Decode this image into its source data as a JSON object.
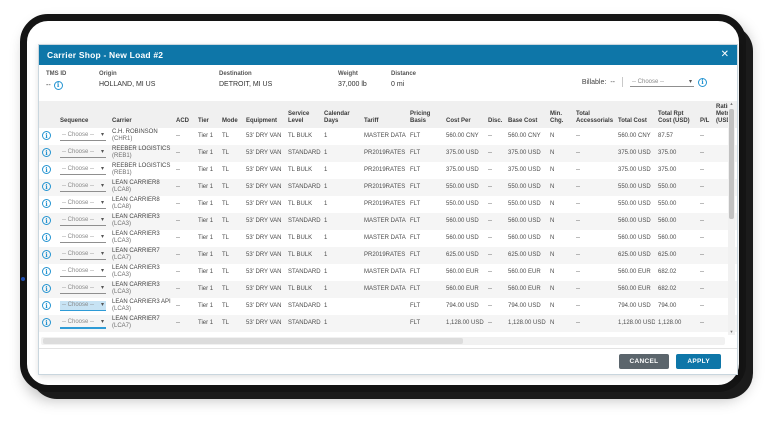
{
  "colors": {
    "accent": "#0e76a8",
    "info": "#2494d1",
    "hl": "#c7e3f4"
  },
  "window": {
    "title": "Carrier Shop - New Load #2",
    "close_icon": "✕"
  },
  "summary": {
    "fields": [
      {
        "label": "TMS ID",
        "value": "--",
        "info": true
      },
      {
        "label": "Origin",
        "value": "HOLLAND, MI US",
        "info": false
      },
      {
        "label": "Destination",
        "value": "DETROIT, MI US",
        "info": false
      },
      {
        "label": "Weight",
        "value": "37,000 lb",
        "info": false
      },
      {
        "label": "Distance",
        "value": "0 mi",
        "info": false
      }
    ],
    "billable": {
      "label": "Billable:",
      "value": "--",
      "placeholder": "-- Choose --"
    }
  },
  "table": {
    "columns": [
      "",
      "Sequence",
      "Carrier",
      "ACD",
      "Tier",
      "Mode",
      "Equipment",
      "Service Level",
      "Calendar Days",
      "Tariff",
      "Pricing Basis",
      "Cost Per",
      "Disc.",
      "Base Cost",
      "Min. Chg.",
      "Total Accessorials",
      "Total Cost",
      "Total Rpt Cost (USD)",
      "P/L",
      "Rating Metric (USD)"
    ],
    "sequence_placeholder": "-- Choose --",
    "rows": [
      {
        "carrier": "C.H. ROBINSON",
        "code": "(CHR1)",
        "acd": "--",
        "tier": "Tier 1",
        "mode": "TL",
        "equipment": "53' DRY VAN",
        "service_level": "TL BULK",
        "calendar_days": "1",
        "tariff": "MASTER DATA",
        "pricing_basis": "FLT",
        "cost_per": "560.00 CNY",
        "disc": "--",
        "base_cost": "560.00 CNY",
        "min_chg": "N",
        "total_accessorials": "--",
        "total_cost": "560.00 CNY",
        "total_rpt_cost": "87.57",
        "pl": "--",
        "rating_metric": "",
        "highlight": ""
      },
      {
        "carrier": "REEBER LOGISTICS",
        "code": "(REB1)",
        "acd": "--",
        "tier": "Tier 1",
        "mode": "TL",
        "equipment": "53' DRY VAN",
        "service_level": "STANDARD",
        "calendar_days": "1",
        "tariff": "PR2019RATES",
        "pricing_basis": "FLT",
        "cost_per": "375.00 USD",
        "disc": "--",
        "base_cost": "375.00 USD",
        "min_chg": "N",
        "total_accessorials": "--",
        "total_cost": "375.00 USD",
        "total_rpt_cost": "375.00",
        "pl": "--",
        "rating_metric": "",
        "highlight": ""
      },
      {
        "carrier": "REEBER LOGISTICS",
        "code": "(REB1)",
        "acd": "--",
        "tier": "Tier 1",
        "mode": "TL",
        "equipment": "53' DRY VAN",
        "service_level": "TL BULK",
        "calendar_days": "1",
        "tariff": "PR2019RATES",
        "pricing_basis": "FLT",
        "cost_per": "375.00 USD",
        "disc": "--",
        "base_cost": "375.00 USD",
        "min_chg": "N",
        "total_accessorials": "--",
        "total_cost": "375.00 USD",
        "total_rpt_cost": "375.00",
        "pl": "--",
        "rating_metric": "",
        "highlight": ""
      },
      {
        "carrier": "LEAN CARRIER8",
        "code": "(LCA8)",
        "acd": "--",
        "tier": "Tier 1",
        "mode": "TL",
        "equipment": "53' DRY VAN",
        "service_level": "STANDARD",
        "calendar_days": "1",
        "tariff": "PR2019RATES",
        "pricing_basis": "FLT",
        "cost_per": "550.00 USD",
        "disc": "--",
        "base_cost": "550.00 USD",
        "min_chg": "N",
        "total_accessorials": "--",
        "total_cost": "550.00 USD",
        "total_rpt_cost": "550.00",
        "pl": "--",
        "rating_metric": "",
        "highlight": ""
      },
      {
        "carrier": "LEAN CARRIER8",
        "code": "(LCA8)",
        "acd": "--",
        "tier": "Tier 1",
        "mode": "TL",
        "equipment": "53' DRY VAN",
        "service_level": "TL BULK",
        "calendar_days": "1",
        "tariff": "PR2019RATES",
        "pricing_basis": "FLT",
        "cost_per": "550.00 USD",
        "disc": "--",
        "base_cost": "550.00 USD",
        "min_chg": "N",
        "total_accessorials": "--",
        "total_cost": "550.00 USD",
        "total_rpt_cost": "550.00",
        "pl": "--",
        "rating_metric": "",
        "highlight": ""
      },
      {
        "carrier": "LEAN CARRIER3",
        "code": "(LCA3)",
        "acd": "--",
        "tier": "Tier 1",
        "mode": "TL",
        "equipment": "53' DRY VAN",
        "service_level": "STANDARD",
        "calendar_days": "1",
        "tariff": "MASTER DATA",
        "pricing_basis": "FLT",
        "cost_per": "560.00 USD",
        "disc": "--",
        "base_cost": "560.00 USD",
        "min_chg": "N",
        "total_accessorials": "--",
        "total_cost": "560.00 USD",
        "total_rpt_cost": "560.00",
        "pl": "--",
        "rating_metric": "",
        "highlight": ""
      },
      {
        "carrier": "LEAN CARRIER3",
        "code": "(LCA3)",
        "acd": "--",
        "tier": "Tier 1",
        "mode": "TL",
        "equipment": "53' DRY VAN",
        "service_level": "TL BULK",
        "calendar_days": "1",
        "tariff": "MASTER DATA",
        "pricing_basis": "FLT",
        "cost_per": "560.00 USD",
        "disc": "--",
        "base_cost": "560.00 USD",
        "min_chg": "N",
        "total_accessorials": "--",
        "total_cost": "560.00 USD",
        "total_rpt_cost": "560.00",
        "pl": "--",
        "rating_metric": "",
        "highlight": ""
      },
      {
        "carrier": "LEAN CARRIER7",
        "code": "(LCA7)",
        "acd": "--",
        "tier": "Tier 1",
        "mode": "TL",
        "equipment": "53' DRY VAN",
        "service_level": "TL BULK",
        "calendar_days": "1",
        "tariff": "PR2019RATES",
        "pricing_basis": "FLT",
        "cost_per": "625.00 USD",
        "disc": "--",
        "base_cost": "625.00 USD",
        "min_chg": "N",
        "total_accessorials": "--",
        "total_cost": "625.00 USD",
        "total_rpt_cost": "625.00",
        "pl": "--",
        "rating_metric": "",
        "highlight": ""
      },
      {
        "carrier": "LEAN CARRIER3",
        "code": "(LCA3)",
        "acd": "--",
        "tier": "Tier 1",
        "mode": "TL",
        "equipment": "53' DRY VAN",
        "service_level": "STANDARD",
        "calendar_days": "1",
        "tariff": "MASTER DATA",
        "pricing_basis": "FLT",
        "cost_per": "560.00 EUR",
        "disc": "--",
        "base_cost": "560.00 EUR",
        "min_chg": "N",
        "total_accessorials": "--",
        "total_cost": "560.00 EUR",
        "total_rpt_cost": "682.02",
        "pl": "--",
        "rating_metric": "",
        "highlight": ""
      },
      {
        "carrier": "LEAN CARRIER3",
        "code": "(LCA3)",
        "acd": "--",
        "tier": "Tier 1",
        "mode": "TL",
        "equipment": "53' DRY VAN",
        "service_level": "TL BULK",
        "calendar_days": "1",
        "tariff": "MASTER DATA",
        "pricing_basis": "FLT",
        "cost_per": "560.00 EUR",
        "disc": "--",
        "base_cost": "560.00 EUR",
        "min_chg": "N",
        "total_accessorials": "--",
        "total_cost": "560.00 EUR",
        "total_rpt_cost": "682.02",
        "pl": "--",
        "rating_metric": "",
        "highlight": ""
      },
      {
        "carrier": "LEAN CARRIER3 API",
        "code": "(LCA3)",
        "acd": "--",
        "tier": "Tier 1",
        "mode": "TL",
        "equipment": "53' DRY VAN",
        "service_level": "STANDARD",
        "calendar_days": "1",
        "tariff": "",
        "pricing_basis": "FLT",
        "cost_per": "794.00 USD",
        "disc": "--",
        "base_cost": "794.00 USD",
        "min_chg": "N",
        "total_accessorials": "--",
        "total_cost": "794.00 USD",
        "total_rpt_cost": "794.00",
        "pl": "--",
        "rating_metric": "",
        "highlight": "selected"
      },
      {
        "carrier": "LEAN CARRIER7",
        "code": "(LCA7)",
        "acd": "--",
        "tier": "Tier 1",
        "mode": "TL",
        "equipment": "53' DRY VAN",
        "service_level": "STANDARD",
        "calendar_days": "1",
        "tariff": "",
        "pricing_basis": "FLT",
        "cost_per": "1,128.00 USD",
        "disc": "--",
        "base_cost": "1,128.00 USD",
        "min_chg": "N",
        "total_accessorials": "--",
        "total_cost": "1,128.00 USD",
        "total_rpt_cost": "1,128.00",
        "pl": "--",
        "rating_metric": "",
        "highlight": "focus"
      }
    ]
  },
  "scrollbar": {
    "up_icon": "▲",
    "down_icon": "▼"
  },
  "footer": {
    "cancel_label": "CANCEL",
    "apply_label": "APPLY"
  },
  "icons": {
    "caret": "▾",
    "info": "i"
  }
}
